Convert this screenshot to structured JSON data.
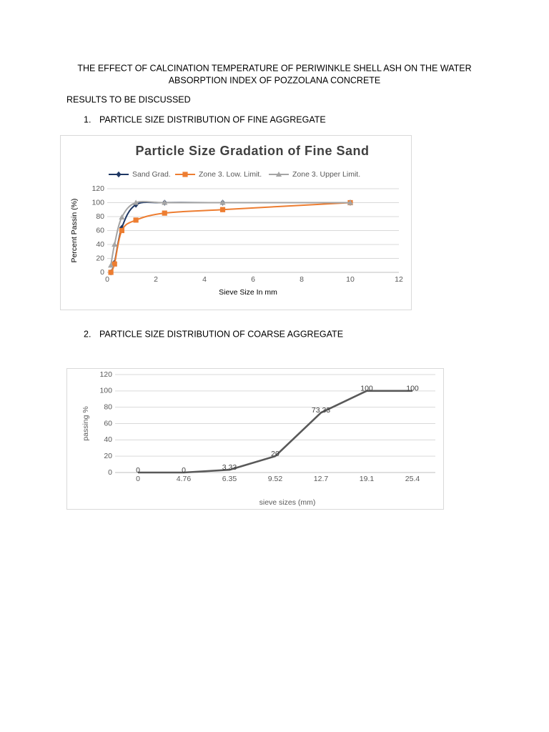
{
  "document": {
    "title_lines": [
      "THE EFFECT OF CALCINATION TEMPERATURE OF PERIWINKLE SHELL ASH ON THE WATER",
      "ABSORPTION INDEX OF POZZOLANA CONCRETE"
    ],
    "section": "RESULTS TO BE DISCUSSED",
    "items": [
      {
        "number": "1.",
        "text": "PARTICLE SIZE DISTRIBUTION OF FINE AGGREGATE"
      },
      {
        "number": "2.",
        "text": "PARTICLE SIZE DISTRIBUTION OF COARSE AGGREGATE"
      }
    ]
  },
  "chart_data": [
    {
      "type": "scatter",
      "title": "Particle Size Gradation of Fine Sand",
      "x_label": "Sieve Size In mm",
      "y_label": "Percent Passin (%)",
      "x": [
        0.15,
        0.3,
        0.6,
        1.18,
        2.36,
        4.75,
        10
      ],
      "series": [
        {
          "name": "Sand Grad.",
          "color": "#1f3864",
          "marker": "diamond",
          "values": [
            0,
            14,
            64,
            97,
            100,
            100,
            100
          ]
        },
        {
          "name": "Zone 3. Low. Limit.",
          "color": "#ed7d31",
          "marker": "square",
          "values": [
            0,
            12,
            60,
            75,
            85,
            90,
            100
          ]
        },
        {
          "name": "Zone 3. Upper Limit.",
          "color": "#a5a5a5",
          "marker": "triangle",
          "values": [
            10,
            40,
            79,
            100,
            100,
            100,
            100
          ]
        }
      ],
      "xlim": [
        0,
        12
      ],
      "xticks": [
        0,
        2,
        4,
        6,
        8,
        10,
        12
      ],
      "ylim": [
        0,
        120
      ],
      "yticks": [
        0,
        20,
        40,
        60,
        80,
        100,
        120
      ],
      "grid": true,
      "legend": "top",
      "smooth": true
    },
    {
      "type": "line",
      "x_label": "sieve sizes (mm)",
      "y_label": "passing %",
      "categories": [
        "0",
        "4.76",
        "6.35",
        "9.52",
        "12.7",
        "19.1",
        "25.4"
      ],
      "values": [
        0,
        0,
        3.33,
        20,
        73.33,
        100,
        100
      ],
      "color": "#595959",
      "ylim": [
        0,
        120
      ],
      "yticks": [
        0,
        20,
        40,
        60,
        80,
        100,
        120
      ],
      "grid": true,
      "data_labels": true
    }
  ]
}
